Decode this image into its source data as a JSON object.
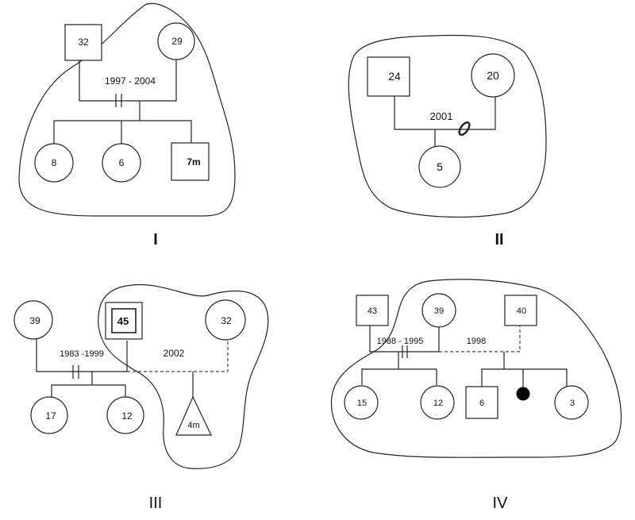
{
  "panels": {
    "I": {
      "label": "I",
      "father_age": "32",
      "mother_age": "29",
      "marriage_years": "1997 - 2004",
      "children": [
        "8",
        "6",
        "7m"
      ]
    },
    "II": {
      "label": "II",
      "father_age": "24",
      "mother_age": "20",
      "marriage_year": "2001",
      "child": "5"
    },
    "III": {
      "label": "III",
      "ex_wife_age": "39",
      "man_age": "45",
      "partner_age": "32",
      "marriage_years": "1983 -1999",
      "partner_year": "2002",
      "children_first": [
        "17",
        "12"
      ],
      "pregnancy": "4m"
    },
    "IV": {
      "label": "IV",
      "man1_age": "43",
      "woman_age": "39",
      "man2_age": "40",
      "marriage_years": "1988 - 1995",
      "partner_year": "1998",
      "children_first": [
        "15",
        "12"
      ],
      "children_second": [
        "6",
        "3"
      ]
    }
  }
}
